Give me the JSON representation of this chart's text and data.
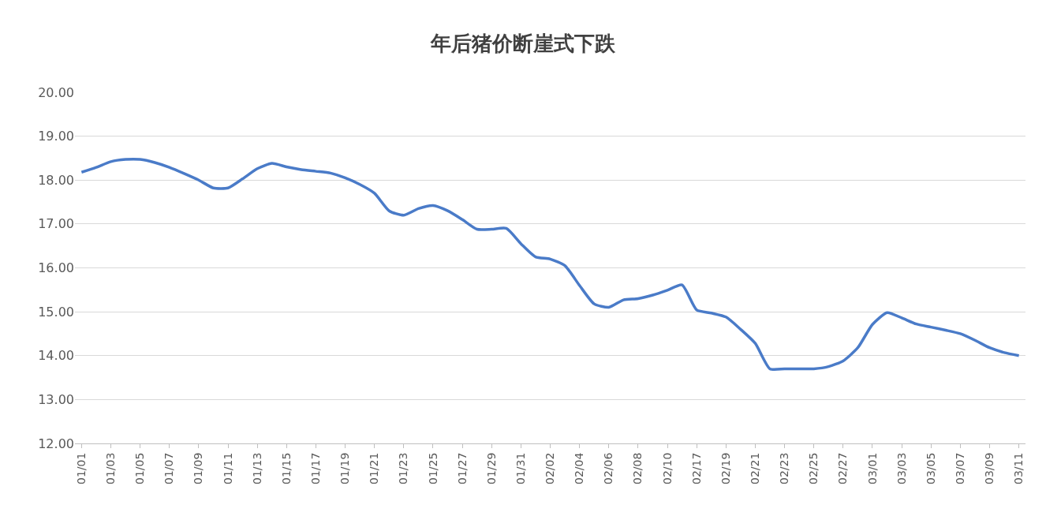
{
  "chart_data": {
    "type": "line",
    "title": "年后猪价断崖式下跌",
    "categories": [
      "01/01",
      null,
      "01/03",
      null,
      "01/05",
      null,
      "01/07",
      null,
      "01/09",
      null,
      "01/11",
      null,
      "01/13",
      null,
      "01/15",
      null,
      "01/17",
      null,
      "01/19",
      null,
      "01/21",
      null,
      "01/23",
      null,
      "01/25",
      null,
      "01/27",
      null,
      "01/29",
      null,
      "01/31",
      null,
      "02/02",
      null,
      "02/04",
      null,
      "02/06",
      null,
      "02/08",
      null,
      "02/10",
      null,
      "02/17",
      null,
      "02/19",
      null,
      "02/21",
      null,
      "02/23",
      null,
      "02/25",
      null,
      "02/27",
      null,
      "03/01",
      null,
      "03/03",
      null,
      "03/05",
      null,
      "03/07",
      null,
      "03/09",
      null,
      "03/11"
    ],
    "series": [
      {
        "color": "#4a7bc8",
        "values": [
          18.18,
          18.29,
          18.42,
          18.47,
          18.47,
          18.4,
          18.29,
          18.15,
          18.0,
          17.82,
          17.82,
          18.03,
          18.26,
          18.38,
          18.3,
          18.24,
          18.2,
          18.16,
          18.05,
          17.9,
          17.7,
          17.3,
          17.2,
          17.35,
          17.42,
          17.3,
          17.1,
          16.88,
          16.88,
          16.9,
          16.55,
          16.25,
          16.2,
          16.05,
          15.6,
          15.18,
          15.1,
          15.27,
          15.3,
          15.38,
          15.49,
          15.61,
          15.04,
          14.97,
          14.88,
          14.6,
          14.28,
          13.7,
          13.7,
          13.7,
          13.7,
          13.75,
          13.88,
          14.18,
          14.71,
          14.98,
          14.86,
          14.72,
          14.65,
          14.58,
          14.5,
          14.35,
          14.18,
          14.07,
          14.0
        ]
      }
    ],
    "ylim": [
      12,
      20
    ],
    "yticks": [
      {
        "value": 12,
        "label": "12.00"
      },
      {
        "value": 13,
        "label": "13.00"
      },
      {
        "value": 14,
        "label": "14.00"
      },
      {
        "value": 15,
        "label": "15.00"
      },
      {
        "value": 16,
        "label": "16.00"
      },
      {
        "value": 17,
        "label": "17.00"
      },
      {
        "value": 18,
        "label": "18.00"
      },
      {
        "value": 19,
        "label": "19.00"
      },
      {
        "value": 20,
        "label": "20.00"
      }
    ],
    "grid": "y",
    "marker": "none",
    "line_style": "solid"
  }
}
